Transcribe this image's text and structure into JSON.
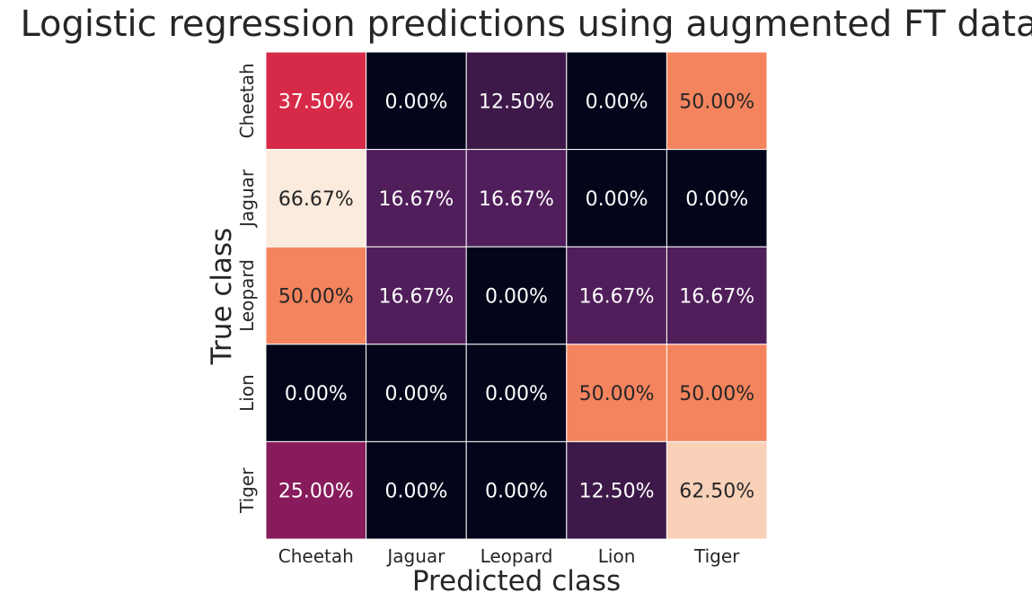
{
  "chart_data": {
    "type": "heatmap",
    "title": "Logistic regression predictions using augmented FT data",
    "xlabel": "Predicted class",
    "ylabel": "True class",
    "x_categories": [
      "Cheetah",
      "Jaguar",
      "Leopard",
      "Lion",
      "Tiger"
    ],
    "y_categories": [
      "Cheetah",
      "Jaguar",
      "Leopard",
      "Lion",
      "Tiger"
    ],
    "values": [
      [
        37.5,
        0.0,
        12.5,
        0.0,
        50.0
      ],
      [
        66.67,
        16.67,
        16.67,
        0.0,
        0.0
      ],
      [
        50.0,
        16.67,
        0.0,
        16.67,
        16.67
      ],
      [
        0.0,
        0.0,
        0.0,
        50.0,
        50.0
      ],
      [
        25.0,
        0.0,
        0.0,
        12.5,
        62.5
      ]
    ],
    "cell_labels": [
      [
        "37.50%",
        "0.00%",
        "12.50%",
        "0.00%",
        "50.00%"
      ],
      [
        "66.67%",
        "16.67%",
        "16.67%",
        "0.00%",
        "0.00%"
      ],
      [
        "50.00%",
        "16.67%",
        "0.00%",
        "16.67%",
        "16.67%"
      ],
      [
        "0.00%",
        "0.00%",
        "0.00%",
        "50.00%",
        "50.00%"
      ],
      [
        "25.00%",
        "0.00%",
        "0.00%",
        "12.50%",
        "62.50%"
      ]
    ],
    "colorscale": "rocket",
    "colorbar": false,
    "grid_lines": "white"
  }
}
